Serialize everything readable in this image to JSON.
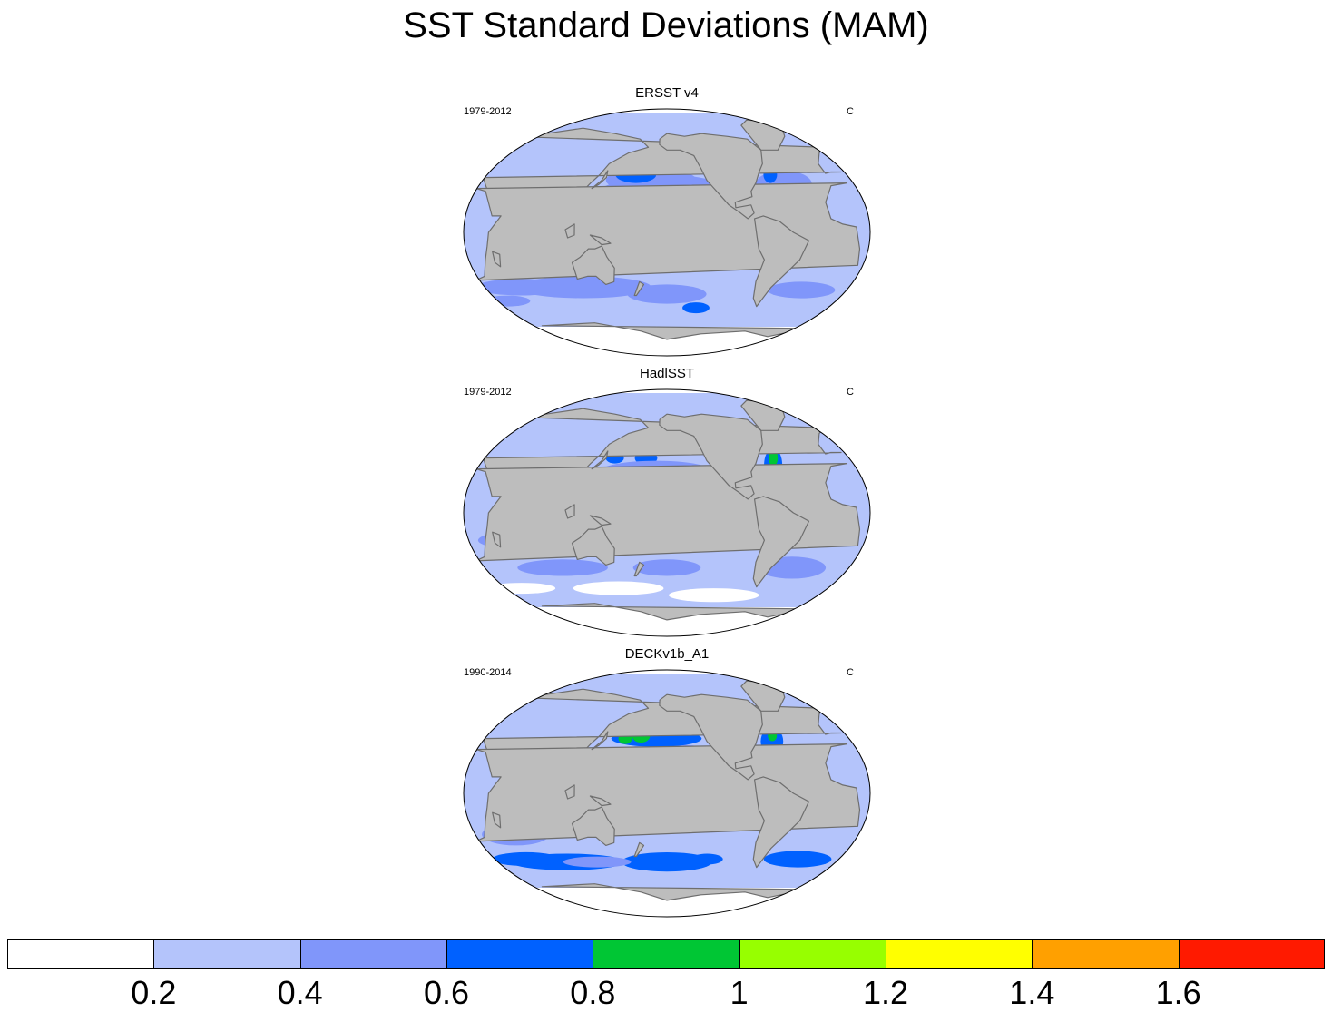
{
  "title": "SST Standard Deviations (MAM)",
  "colors": {
    "land": "#bdbdbd",
    "coast": "#6e6e6e",
    "background": "#ffffff"
  },
  "panels": [
    {
      "title": "ERSST v4",
      "period": "1979-2012",
      "units": "C",
      "variant": "smooth"
    },
    {
      "title": "HadlSST",
      "period": "1979-2012",
      "units": "C",
      "variant": "noisy"
    },
    {
      "title": "DECKv1b_A1",
      "period": "1990-2014",
      "units": "C",
      "variant": "model"
    }
  ],
  "colorbar": {
    "levels": [
      "0.2",
      "0.4",
      "0.6",
      "0.8",
      "1",
      "1.2",
      "1.4",
      "1.6"
    ],
    "colors": [
      "#ffffff",
      "#b4c4fb",
      "#8096fa",
      "#0061ff",
      "#00c634",
      "#97ff00",
      "#ffff00",
      "#ffa000",
      "#ff1a00"
    ]
  }
}
